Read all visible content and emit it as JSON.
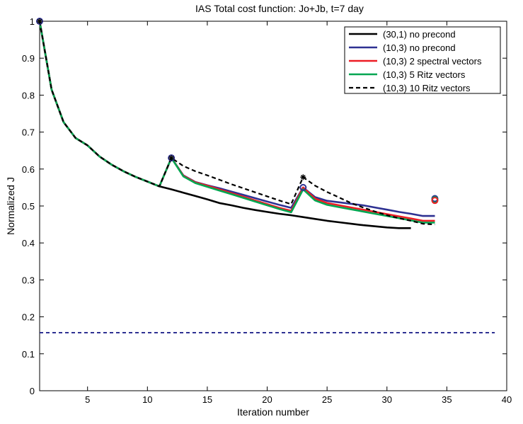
{
  "chart_data": {
    "type": "line",
    "title": "IAS Total cost function: Jo+Jb, t=7 day",
    "xlabel": "Iteration number",
    "ylabel": "Normalized J",
    "xlim": [
      1,
      40
    ],
    "ylim": [
      0,
      1
    ],
    "xticks": [
      5,
      10,
      15,
      20,
      25,
      30,
      35,
      40
    ],
    "yticks": [
      0,
      0.1,
      0.2,
      0.3,
      0.4,
      0.5,
      0.6,
      0.7,
      0.8,
      0.9,
      1
    ],
    "grid": false,
    "legend_position": "top-right",
    "series": [
      {
        "name": "(30,1) no precond",
        "color": "#000000",
        "dash": "solid",
        "x": [
          1,
          2,
          3,
          4,
          5,
          6,
          7,
          8,
          9,
          10,
          11,
          12,
          13,
          14,
          15,
          16,
          17,
          18,
          19,
          20,
          21,
          22,
          23,
          24,
          25,
          26,
          27,
          28,
          29,
          30,
          31,
          32
        ],
        "y": [
          1.0,
          0.815,
          0.727,
          0.684,
          0.664,
          0.634,
          0.612,
          0.594,
          0.579,
          0.566,
          0.553,
          0.545,
          0.536,
          0.527,
          0.518,
          0.508,
          0.502,
          0.495,
          0.489,
          0.484,
          0.479,
          0.475,
          0.47,
          0.465,
          0.46,
          0.456,
          0.452,
          0.448,
          0.445,
          0.442,
          0.44,
          0.44
        ]
      },
      {
        "name": "(10,3) no precond",
        "color": "#2e3192",
        "dash": "solid",
        "x": [
          1,
          2,
          3,
          4,
          5,
          6,
          7,
          8,
          9,
          10,
          11,
          12,
          13,
          14,
          15,
          16,
          17,
          18,
          19,
          20,
          21,
          22,
          23,
          24,
          25,
          26,
          27,
          28,
          29,
          30,
          31,
          32,
          33,
          34
        ],
        "y": [
          1.0,
          0.815,
          0.727,
          0.684,
          0.664,
          0.634,
          0.612,
          0.594,
          0.579,
          0.566,
          0.553,
          0.63,
          0.583,
          0.565,
          0.556,
          0.548,
          0.539,
          0.53,
          0.521,
          0.512,
          0.503,
          0.495,
          0.55,
          0.524,
          0.514,
          0.51,
          0.506,
          0.502,
          0.496,
          0.49,
          0.484,
          0.479,
          0.473,
          0.473
        ]
      },
      {
        "name": "(10,3) 2 spectral vectors",
        "color": "#ed1c24",
        "dash": "solid",
        "x": [
          1,
          2,
          3,
          4,
          5,
          6,
          7,
          8,
          9,
          10,
          11,
          12,
          13,
          14,
          15,
          16,
          17,
          18,
          19,
          20,
          21,
          22,
          23,
          24,
          25,
          26,
          27,
          28,
          29,
          30,
          31,
          32,
          33,
          34
        ],
        "y": [
          1.0,
          0.815,
          0.727,
          0.684,
          0.664,
          0.634,
          0.612,
          0.594,
          0.579,
          0.566,
          0.553,
          0.63,
          0.582,
          0.564,
          0.555,
          0.545,
          0.535,
          0.525,
          0.515,
          0.505,
          0.495,
          0.487,
          0.55,
          0.52,
          0.508,
          0.502,
          0.496,
          0.49,
          0.484,
          0.478,
          0.472,
          0.466,
          0.46,
          0.46
        ]
      },
      {
        "name": "(10,3) 5 Ritz vectors",
        "color": "#00a651",
        "dash": "solid",
        "x": [
          1,
          2,
          3,
          4,
          5,
          6,
          7,
          8,
          9,
          10,
          11,
          12,
          13,
          14,
          15,
          16,
          17,
          18,
          19,
          20,
          21,
          22,
          23,
          24,
          25,
          26,
          27,
          28,
          29,
          30,
          31,
          32,
          33,
          34
        ],
        "y": [
          1.0,
          0.815,
          0.727,
          0.684,
          0.664,
          0.634,
          0.612,
          0.594,
          0.579,
          0.566,
          0.553,
          0.63,
          0.58,
          0.562,
          0.552,
          0.542,
          0.532,
          0.522,
          0.512,
          0.502,
          0.492,
          0.483,
          0.545,
          0.515,
          0.503,
          0.497,
          0.491,
          0.485,
          0.479,
          0.473,
          0.467,
          0.461,
          0.455,
          0.455
        ]
      },
      {
        "name": "(10,3) 10 Ritz vectors",
        "color": "#000000",
        "dash": "dashed",
        "x": [
          1,
          2,
          3,
          4,
          5,
          6,
          7,
          8,
          9,
          10,
          11,
          12,
          13,
          14,
          15,
          16,
          17,
          18,
          19,
          20,
          21,
          22,
          23,
          24,
          25,
          26,
          27,
          28,
          29,
          30,
          31,
          32,
          33,
          34
        ],
        "y": [
          1.0,
          0.815,
          0.727,
          0.684,
          0.664,
          0.634,
          0.612,
          0.594,
          0.579,
          0.566,
          0.553,
          0.63,
          0.608,
          0.594,
          0.583,
          0.571,
          0.559,
          0.548,
          0.537,
          0.526,
          0.515,
          0.505,
          0.578,
          0.555,
          0.538,
          0.523,
          0.508,
          0.496,
          0.485,
          0.475,
          0.467,
          0.46,
          0.452,
          0.45
        ]
      }
    ],
    "reference_line": {
      "y": 0.157,
      "x_from": 1,
      "x_to": 39,
      "color": "#2e3192",
      "dash": "dashed"
    },
    "markers": [
      {
        "x": 1,
        "y": 1.0,
        "type": "circle",
        "color": "#2e3192"
      },
      {
        "x": 1,
        "y": 1.0,
        "type": "star",
        "color": "#000000"
      },
      {
        "x": 12,
        "y": 0.63,
        "type": "circle",
        "color": "#2e3192"
      },
      {
        "x": 12,
        "y": 0.63,
        "type": "star",
        "color": "#000000"
      },
      {
        "x": 23,
        "y": 0.55,
        "type": "circle",
        "color": "#2e3192"
      },
      {
        "x": 23,
        "y": 0.578,
        "type": "star",
        "color": "#000000"
      },
      {
        "x": 34,
        "y": 0.52,
        "type": "circle",
        "color": "#2e3192"
      },
      {
        "x": 34,
        "y": 0.517,
        "type": "circle",
        "color": "#00a651"
      },
      {
        "x": 34,
        "y": 0.515,
        "type": "circle",
        "color": "#ed1c24"
      }
    ]
  }
}
